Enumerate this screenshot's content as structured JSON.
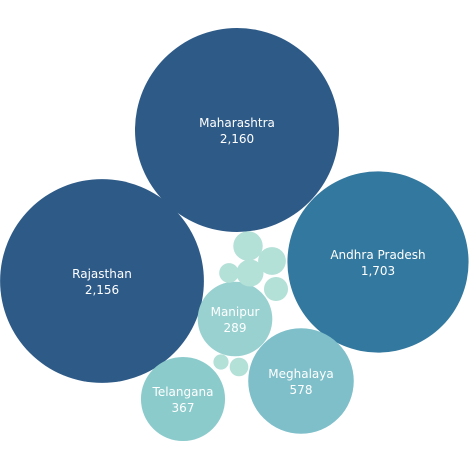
{
  "chart_data": {
    "type": "bubble",
    "title": "",
    "bubbles": [
      {
        "label": "Maharashtra",
        "value": 2160,
        "value_label": "2,160",
        "color": "#2e5a87",
        "text_color": "#ffffff"
      },
      {
        "label": "Rajasthan",
        "value": 2156,
        "value_label": "2,156",
        "color": "#2e5a87",
        "text_color": "#ffffff"
      },
      {
        "label": "Andhra Pradesh",
        "value": 1703,
        "value_label": "1,703",
        "color": "#33789e",
        "text_color": "#ffffff"
      },
      {
        "label": "Meghalaya",
        "value": 578,
        "value_label": "578",
        "color": "#7ebfca",
        "text_color": "#333333"
      },
      {
        "label": "Telangana",
        "value": 367,
        "value_label": "367",
        "color": "#8ccbcc",
        "text_color": "#333333"
      },
      {
        "label": "Manipur",
        "value": 289,
        "value_label": "289",
        "color": "#99d1d1",
        "text_color": "#333333"
      },
      {
        "label": "",
        "value": 45,
        "value_label": "",
        "color": "#b3e0d7",
        "text_color": "#333333"
      },
      {
        "label": "",
        "value": 40,
        "value_label": "",
        "color": "#b3e0d7",
        "text_color": "#333333"
      },
      {
        "label": "",
        "value": 38,
        "value_label": "",
        "color": "#b3e0d7",
        "text_color": "#333333"
      },
      {
        "label": "",
        "value": 30,
        "value_label": "",
        "color": "#b3e0d7",
        "text_color": "#333333"
      },
      {
        "label": "",
        "value": 20,
        "value_label": "",
        "color": "#b3e0d7",
        "text_color": "#333333"
      },
      {
        "label": "",
        "value": 18,
        "value_label": "",
        "color": "#b3e0d7",
        "text_color": "#333333"
      },
      {
        "label": "",
        "value": 12,
        "value_label": "",
        "color": "#b3e0d7",
        "text_color": "#333333"
      }
    ]
  }
}
